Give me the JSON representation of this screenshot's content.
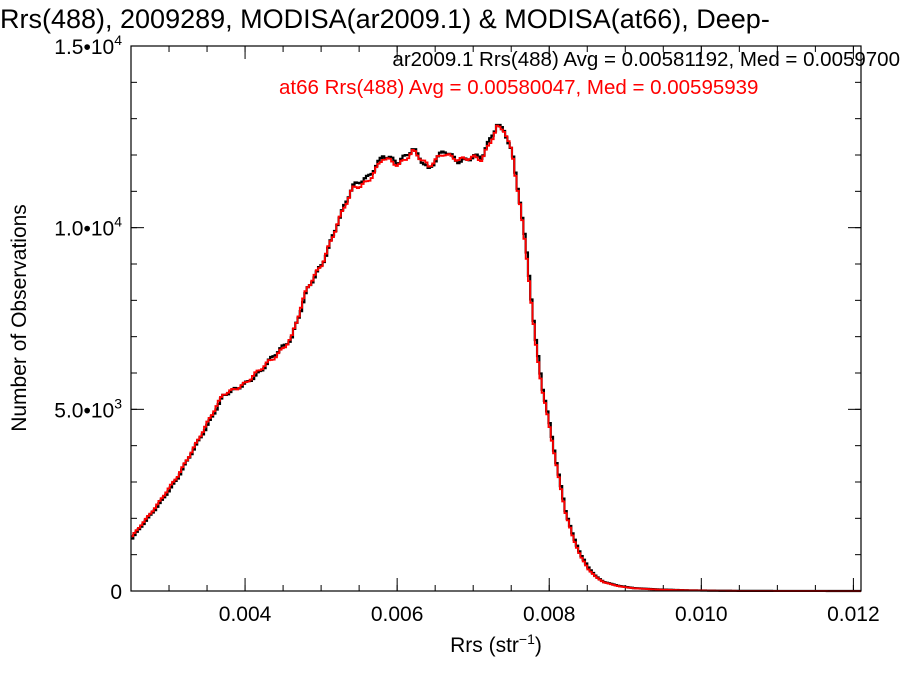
{
  "chart_data": {
    "type": "step-histogram",
    "title": "Rrs(488), 2009289, MODISA(ar2009.1) & MODISA(at66), Deep-",
    "xlabel": "Rrs (str",
    "xlabel_sup": "−1",
    "xlabel_end": ")",
    "ylabel": "Number of Observations",
    "xlim": [
      0.0025,
      0.0121
    ],
    "ylim": [
      0,
      15000
    ],
    "xticks": [
      0.004,
      0.006,
      0.008,
      0.01,
      0.012
    ],
    "xtick_labels": [
      "0.004",
      "0.006",
      "0.008",
      "0.010",
      "0.012"
    ],
    "yticks": [
      0,
      5000,
      10000,
      15000
    ],
    "ytick_labels": [
      {
        "base": "0",
        "exp": ""
      },
      {
        "base": "5.0•10",
        "exp": "3"
      },
      {
        "base": "1.0•10",
        "exp": "4"
      },
      {
        "base": "1.5•10",
        "exp": "4"
      }
    ],
    "x_minor_step": 0.0005,
    "y_minor_step": 1000,
    "grid": false,
    "annotations": [
      {
        "text": "ar2009.1 Rrs(488) Avg = 0.00581192, Med = 0.0059700",
        "color": "#000000"
      },
      {
        "text": "at66 Rrs(488) Avg = 0.00580047, Med = 0.00595939",
        "color": "#ff0000"
      }
    ],
    "series": [
      {
        "color": "#000000",
        "points": [
          [
            0.0025,
            1450
          ],
          [
            0.0028,
            2250
          ],
          [
            0.0031,
            3100
          ],
          [
            0.0034,
            4250
          ],
          [
            0.0037,
            5350
          ],
          [
            0.004,
            5750
          ],
          [
            0.0042,
            6050
          ],
          [
            0.0044,
            6550
          ],
          [
            0.0046,
            7000
          ],
          [
            0.0048,
            8250
          ],
          [
            0.005,
            9000
          ],
          [
            0.0052,
            10150
          ],
          [
            0.0054,
            11100
          ],
          [
            0.0056,
            11400
          ],
          [
            0.0058,
            12000
          ],
          [
            0.006,
            11750
          ],
          [
            0.0062,
            12200
          ],
          [
            0.0064,
            11600
          ],
          [
            0.0066,
            12100
          ],
          [
            0.0068,
            11850
          ],
          [
            0.007,
            11950
          ],
          [
            0.0071,
            11900
          ],
          [
            0.0073,
            12850
          ],
          [
            0.0074,
            12700
          ],
          [
            0.0075,
            12050
          ],
          [
            0.0076,
            10700
          ],
          [
            0.0077,
            9100
          ],
          [
            0.0078,
            7000
          ],
          [
            0.0079,
            5600
          ],
          [
            0.008,
            4500
          ],
          [
            0.0081,
            3300
          ],
          [
            0.0082,
            2200
          ],
          [
            0.0083,
            1500
          ],
          [
            0.0084,
            1000
          ],
          [
            0.0085,
            650
          ],
          [
            0.0086,
            400
          ],
          [
            0.0087,
            250
          ],
          [
            0.0089,
            140
          ],
          [
            0.0091,
            80
          ],
          [
            0.0094,
            45
          ],
          [
            0.0098,
            20
          ],
          [
            0.0102,
            8
          ],
          [
            0.0106,
            3
          ],
          [
            0.0121,
            0
          ]
        ]
      },
      {
        "color": "#ff0000",
        "points": [
          [
            0.0025,
            1500
          ],
          [
            0.0028,
            2300
          ],
          [
            0.0031,
            3150
          ],
          [
            0.0034,
            4300
          ],
          [
            0.0037,
            5400
          ],
          [
            0.004,
            5750
          ],
          [
            0.0042,
            6100
          ],
          [
            0.0044,
            6500
          ],
          [
            0.0046,
            7000
          ],
          [
            0.0048,
            8300
          ],
          [
            0.005,
            9050
          ],
          [
            0.0052,
            10100
          ],
          [
            0.0054,
            11050
          ],
          [
            0.0056,
            11300
          ],
          [
            0.0058,
            11900
          ],
          [
            0.006,
            11700
          ],
          [
            0.0062,
            12150
          ],
          [
            0.0064,
            11650
          ],
          [
            0.0066,
            12050
          ],
          [
            0.0068,
            11900
          ],
          [
            0.007,
            11900
          ],
          [
            0.0071,
            11850
          ],
          [
            0.0073,
            12800
          ],
          [
            0.0074,
            12700
          ],
          [
            0.0075,
            12000
          ],
          [
            0.0076,
            10600
          ],
          [
            0.0077,
            9000
          ],
          [
            0.0078,
            6900
          ],
          [
            0.0079,
            5500
          ],
          [
            0.008,
            4400
          ],
          [
            0.0081,
            3200
          ],
          [
            0.0082,
            2150
          ],
          [
            0.0083,
            1450
          ],
          [
            0.0084,
            950
          ],
          [
            0.0085,
            600
          ],
          [
            0.0086,
            380
          ],
          [
            0.0087,
            240
          ],
          [
            0.0089,
            130
          ],
          [
            0.0091,
            75
          ],
          [
            0.0094,
            40
          ],
          [
            0.0098,
            18
          ],
          [
            0.0102,
            7
          ],
          [
            0.0106,
            3
          ],
          [
            0.0121,
            0
          ]
        ]
      }
    ]
  }
}
